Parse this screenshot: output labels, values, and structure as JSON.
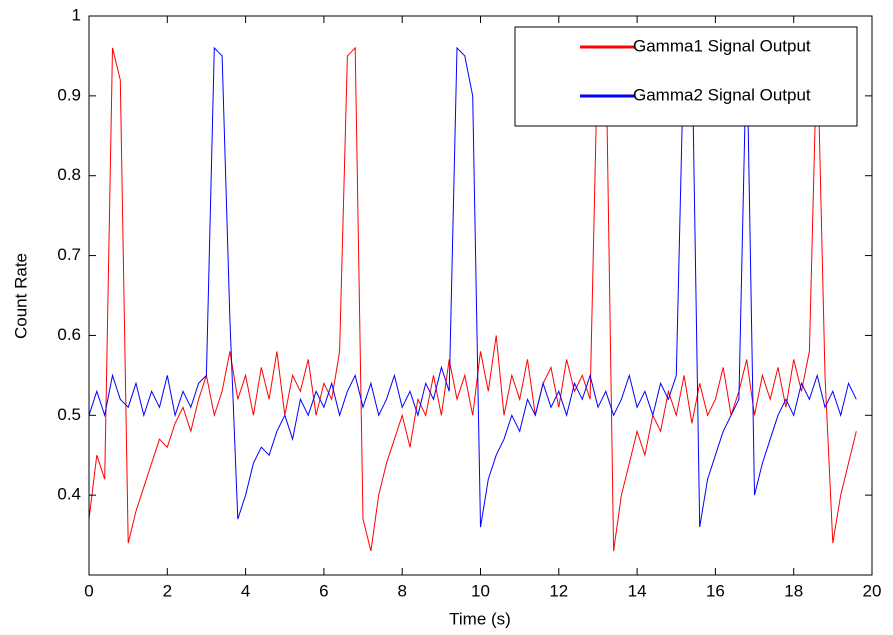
{
  "chart_data": {
    "type": "line",
    "xlabel": "Time (s)",
    "ylabel": "Count Rate",
    "x": [
      0,
      0.2,
      0.4,
      0.6,
      0.8,
      1.0,
      1.2,
      1.4,
      1.6,
      1.8,
      2.0,
      2.2,
      2.4,
      2.6,
      2.8,
      3.0,
      3.2,
      3.4,
      3.6,
      3.8,
      4.0,
      4.2,
      4.4,
      4.6,
      4.8,
      5.0,
      5.2,
      5.4,
      5.6,
      5.8,
      6.0,
      6.2,
      6.4,
      6.6,
      6.8,
      7.0,
      7.2,
      7.4,
      7.6,
      7.8,
      8.0,
      8.2,
      8.4,
      8.6,
      8.8,
      9.0,
      9.2,
      9.4,
      9.6,
      9.8,
      10.0,
      10.2,
      10.4,
      10.6,
      10.8,
      11.0,
      11.2,
      11.4,
      11.6,
      11.8,
      12.0,
      12.2,
      12.4,
      12.6,
      12.8,
      13.0,
      13.2,
      13.4,
      13.6,
      13.8,
      14.0,
      14.2,
      14.4,
      14.6,
      14.8,
      15.0,
      15.2,
      15.4,
      15.6,
      15.8,
      16.0,
      16.2,
      16.4,
      16.6,
      16.8,
      17.0,
      17.2,
      17.4,
      17.6,
      17.8,
      18.0,
      18.2,
      18.4,
      18.6,
      18.8,
      19.0,
      19.2,
      19.4,
      19.6
    ],
    "series": [
      {
        "name": "Gamma1 Signal Output",
        "color": "#ff0000",
        "values": [
          0.37,
          0.45,
          0.42,
          0.96,
          0.92,
          0.34,
          0.38,
          0.41,
          0.44,
          0.47,
          0.46,
          0.49,
          0.51,
          0.48,
          0.52,
          0.55,
          0.5,
          0.53,
          0.58,
          0.52,
          0.55,
          0.5,
          0.56,
          0.52,
          0.58,
          0.5,
          0.55,
          0.53,
          0.57,
          0.5,
          0.54,
          0.52,
          0.58,
          0.95,
          0.96,
          0.37,
          0.33,
          0.4,
          0.44,
          0.47,
          0.5,
          0.46,
          0.52,
          0.5,
          0.55,
          0.5,
          0.57,
          0.52,
          0.55,
          0.5,
          0.58,
          0.53,
          0.6,
          0.5,
          0.55,
          0.52,
          0.57,
          0.5,
          0.54,
          0.56,
          0.51,
          0.57,
          0.53,
          0.55,
          0.52,
          0.97,
          0.97,
          0.33,
          0.4,
          0.44,
          0.48,
          0.45,
          0.5,
          0.48,
          0.53,
          0.5,
          0.55,
          0.49,
          0.54,
          0.5,
          0.52,
          0.56,
          0.5,
          0.53,
          0.57,
          0.5,
          0.55,
          0.52,
          0.56,
          0.51,
          0.57,
          0.53,
          0.58,
          0.97,
          0.55,
          0.34,
          0.4,
          0.44,
          0.48
        ]
      },
      {
        "name": "Gamma2 Signal Output",
        "color": "#0000ff",
        "values": [
          0.5,
          0.53,
          0.5,
          0.55,
          0.52,
          0.51,
          0.54,
          0.5,
          0.53,
          0.51,
          0.55,
          0.5,
          0.53,
          0.51,
          0.54,
          0.55,
          0.96,
          0.95,
          0.62,
          0.37,
          0.4,
          0.44,
          0.46,
          0.45,
          0.48,
          0.5,
          0.47,
          0.52,
          0.5,
          0.53,
          0.51,
          0.54,
          0.5,
          0.53,
          0.55,
          0.51,
          0.54,
          0.5,
          0.52,
          0.55,
          0.51,
          0.53,
          0.5,
          0.54,
          0.52,
          0.56,
          0.53,
          0.96,
          0.95,
          0.9,
          0.36,
          0.42,
          0.45,
          0.47,
          0.5,
          0.48,
          0.52,
          0.5,
          0.54,
          0.51,
          0.53,
          0.5,
          0.54,
          0.52,
          0.55,
          0.51,
          0.53,
          0.5,
          0.52,
          0.55,
          0.51,
          0.53,
          0.5,
          0.54,
          0.52,
          0.55,
          0.97,
          0.97,
          0.36,
          0.42,
          0.45,
          0.48,
          0.5,
          0.52,
          0.97,
          0.4,
          0.44,
          0.47,
          0.5,
          0.52,
          0.5,
          0.54,
          0.52,
          0.55,
          0.51,
          0.53,
          0.5,
          0.54,
          0.52
        ]
      }
    ],
    "xlim": [
      0,
      20
    ],
    "xticks": [
      0,
      2,
      4,
      6,
      8,
      10,
      12,
      14,
      16,
      18,
      20
    ],
    "ylim": [
      0.3,
      1
    ],
    "yticks": [
      0.4,
      0.5,
      0.6,
      0.7,
      0.8,
      0.9,
      1
    ],
    "legend": "upper right"
  }
}
